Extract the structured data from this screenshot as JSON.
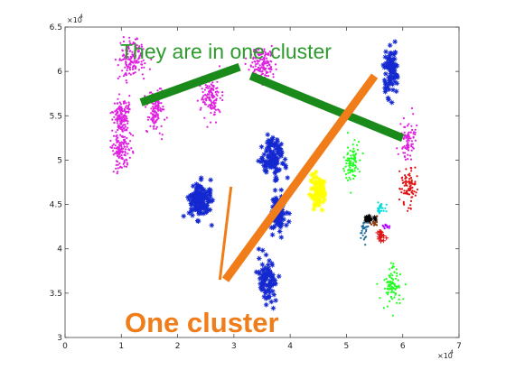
{
  "chart_data": {
    "type": "scatter",
    "title": "",
    "xlabel": "",
    "ylabel": "",
    "xlim": [
      0,
      70000
    ],
    "ylim": [
      30000,
      65000
    ],
    "x_exponent_label": "×10",
    "x_exponent_power": "4",
    "y_exponent_label": "×10",
    "y_exponent_power": "4",
    "x_ticks": [
      "0",
      "1",
      "2",
      "3",
      "4",
      "5",
      "6",
      "7"
    ],
    "x_tick_values": [
      0,
      10000,
      20000,
      30000,
      40000,
      50000,
      60000,
      70000
    ],
    "y_ticks": [
      "3",
      "3.5",
      "4",
      "4.5",
      "5",
      "5.5",
      "6",
      "6.5"
    ],
    "y_tick_values": [
      30000,
      35000,
      40000,
      45000,
      50000,
      55000,
      60000,
      65000
    ],
    "grid": false,
    "series": [
      {
        "color": "#e020e0",
        "marker": "dot",
        "clusters": [
          {
            "center": [
              1000,
              55000
            ],
            "spread": [
              1600,
              1900
            ],
            "count": 140
          },
          {
            "center": [
              1000,
              51000
            ],
            "spread": [
              1600,
              1800
            ],
            "count": 130
          },
          {
            "center": [
              1200,
              61500
            ],
            "spread": [
              2000,
              2000
            ],
            "count": 150
          },
          {
            "center": [
              1600,
              55500
            ],
            "spread": [
              1600,
              1900
            ],
            "count": 120
          },
          {
            "center": [
              2600,
              57000
            ],
            "spread": [
              1600,
              1900
            ],
            "count": 120
          },
          {
            "center": [
              3500,
              61000
            ],
            "spread": [
              2200,
              1700
            ],
            "count": 140
          },
          {
            "center": [
              6100,
              52500
            ],
            "spread": [
              1400,
              1900
            ],
            "count": 80
          }
        ]
      },
      {
        "color": "#1428d0",
        "marker": "star",
        "clusters": [
          {
            "center": [
              2400,
              45500
            ],
            "spread": [
              1800,
              1800
            ],
            "count": 140
          },
          {
            "center": [
              3800,
              44000
            ],
            "spread": [
              1300,
              2000
            ],
            "count": 90
          },
          {
            "center": [
              3700,
              50200
            ],
            "spread": [
              1600,
              2200
            ],
            "count": 120
          },
          {
            "center": [
              3600,
              36500
            ],
            "spread": [
              1400,
              2200
            ],
            "count": 90
          },
          {
            "center": [
              5800,
              60000
            ],
            "spread": [
              1400,
              2200
            ],
            "count": 90
          }
        ]
      },
      {
        "color": "#ffff00",
        "marker": "star",
        "clusters": [
          {
            "center": [
              4500,
              46500
            ],
            "spread": [
              1200,
              1800
            ],
            "count": 80
          }
        ]
      },
      {
        "color": "#20ff20",
        "marker": "dot",
        "clusters": [
          {
            "center": [
              5100,
              49500
            ],
            "spread": [
              1200,
              1800
            ],
            "count": 90
          },
          {
            "center": [
              5800,
              35800
            ],
            "spread": [
              1500,
              2000
            ],
            "count": 90
          }
        ]
      },
      {
        "color": "#e01414",
        "marker": "dot",
        "clusters": [
          {
            "center": [
              6100,
              47000
            ],
            "spread": [
              1400,
              1800
            ],
            "count": 90
          }
        ]
      },
      {
        "color": "#e01414",
        "marker": "plus",
        "clusters": [
          {
            "center": [
              5600,
              41500
            ],
            "spread": [
              900,
              900
            ],
            "count": 20
          }
        ]
      },
      {
        "color": "#00dddd",
        "marker": "dot",
        "clusters": [
          {
            "center": [
              5600,
              44500
            ],
            "spread": [
              800,
              700
            ],
            "count": 25
          }
        ]
      },
      {
        "color": "#8a3a10",
        "marker": "dot",
        "clusters": [
          {
            "center": [
              5500,
              43000
            ],
            "spread": [
              1000,
              600
            ],
            "count": 20
          }
        ]
      },
      {
        "color": "#000000",
        "marker": "star",
        "clusters": [
          {
            "center": [
              5400,
              43400
            ],
            "spread": [
              800,
              300
            ],
            "count": 15
          }
        ]
      },
      {
        "color": "#1a6a9a",
        "marker": "dot",
        "clusters": [
          {
            "center": [
              5300,
              42000
            ],
            "spread": [
              700,
              900
            ],
            "count": 25
          }
        ]
      },
      {
        "color": "#b000ff",
        "marker": "dot",
        "clusters": [
          {
            "center": [
              5700,
              42500
            ],
            "spread": [
              500,
              500
            ],
            "count": 12
          }
        ]
      }
    ],
    "annotations": [
      {
        "text": "They are in one cluster",
        "color": "#2e9a2e"
      },
      {
        "text": "One cluster",
        "color": "#f07d19"
      }
    ],
    "annotation_lines": [
      {
        "color": "#1a8a1a",
        "from": [
          13500,
          56500
        ],
        "to": [
          31000,
          60500
        ]
      },
      {
        "color": "#1a8a1a",
        "from": [
          33000,
          59500
        ],
        "to": [
          60000,
          52500
        ]
      },
      {
        "color": "#f07d19",
        "from": [
          28500,
          36500
        ],
        "to": [
          55000,
          59500
        ]
      },
      {
        "color": "#f07d19",
        "from": [
          27500,
          36500
        ],
        "to": [
          29500,
          47000
        ]
      }
    ]
  }
}
